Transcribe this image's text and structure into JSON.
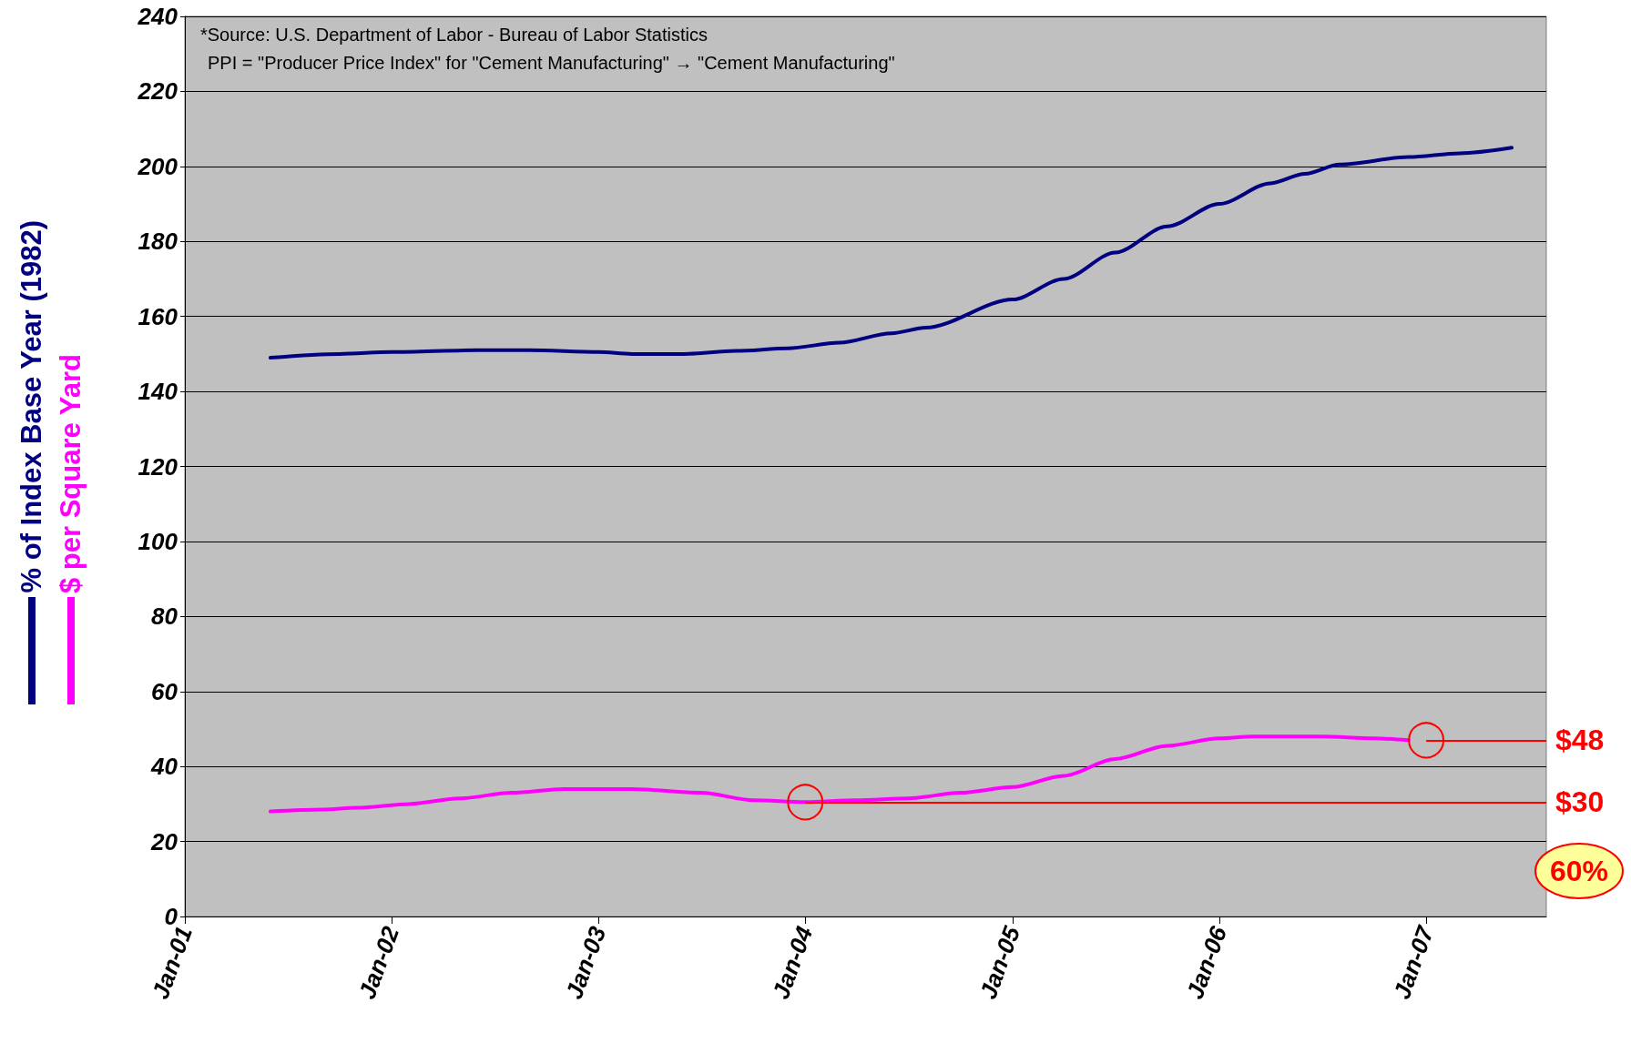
{
  "chart_data": {
    "type": "line",
    "annotations": [
      "*Source: U.S. Department of Labor - Bureau of Labor Statistics",
      "PPI = \"Producer Price Index\" for \"Cement Manufacturing\" → \"Cement Manufacturing\"",
      "60%",
      {
        "text": "$48",
        "x": "2007-01",
        "y": 47
      },
      {
        "text": "$30",
        "x": "2004-01",
        "y": 30.5
      }
    ],
    "legend": "left",
    "grid": "y",
    "marker": "none",
    "line_style": "solid",
    "xlim": [
      "2001-01",
      "2007-08"
    ],
    "ylim": [
      0,
      240
    ],
    "yticks": [
      0,
      20,
      40,
      60,
      80,
      100,
      120,
      140,
      160,
      180,
      200,
      220,
      240
    ],
    "xticks": [
      {
        "value": "2001-01",
        "label": "Jan-01"
      },
      {
        "value": "2002-01",
        "label": "Jan-02"
      },
      {
        "value": "2003-01",
        "label": "Jan-03"
      },
      {
        "value": "2004-01",
        "label": "Jan-04"
      },
      {
        "value": "2005-01",
        "label": "Jan-05"
      },
      {
        "value": "2006-01",
        "label": "Jan-06"
      },
      {
        "value": "2007-01",
        "label": "Jan-07"
      }
    ],
    "series": [
      {
        "name": "% of Index Base Year (1982)",
        "color": "#000080",
        "x": [
          "2001-06",
          "2001-10",
          "2002-01",
          "2002-06",
          "2002-09",
          "2003-01",
          "2003-03",
          "2003-06",
          "2003-09",
          "2003-12",
          "2004-03",
          "2004-06",
          "2004-08",
          "2005-01",
          "2005-04",
          "2005-07",
          "2005-10",
          "2006-01",
          "2006-04",
          "2006-06",
          "2006-08",
          "2006-12",
          "2007-03",
          "2007-06"
        ],
        "values": [
          149,
          150,
          150.5,
          151,
          151,
          150.5,
          150,
          150,
          150.8,
          151.5,
          153,
          155.5,
          157,
          164.5,
          170,
          177,
          184,
          190,
          195.5,
          198,
          200.5,
          202.5,
          203.5,
          205
        ]
      },
      {
        "name": "$ per Square Yard",
        "color": "#ff00ff",
        "x": [
          "2001-06",
          "2001-09",
          "2001-11",
          "2002-02",
          "2002-05",
          "2002-08",
          "2002-11",
          "2003-03",
          "2003-07",
          "2003-10",
          "2004-01",
          "2004-04",
          "2004-07",
          "2004-10",
          "2005-01",
          "2005-04",
          "2005-07",
          "2005-10",
          "2006-01",
          "2006-03",
          "2006-07",
          "2006-10",
          "2006-12"
        ],
        "values": [
          28,
          28.5,
          29,
          30,
          31.5,
          33,
          34,
          34,
          33,
          31,
          30.5,
          31,
          31.5,
          33,
          34.5,
          37.5,
          42,
          45.5,
          47.5,
          48,
          48,
          47.5,
          47
        ]
      }
    ]
  }
}
